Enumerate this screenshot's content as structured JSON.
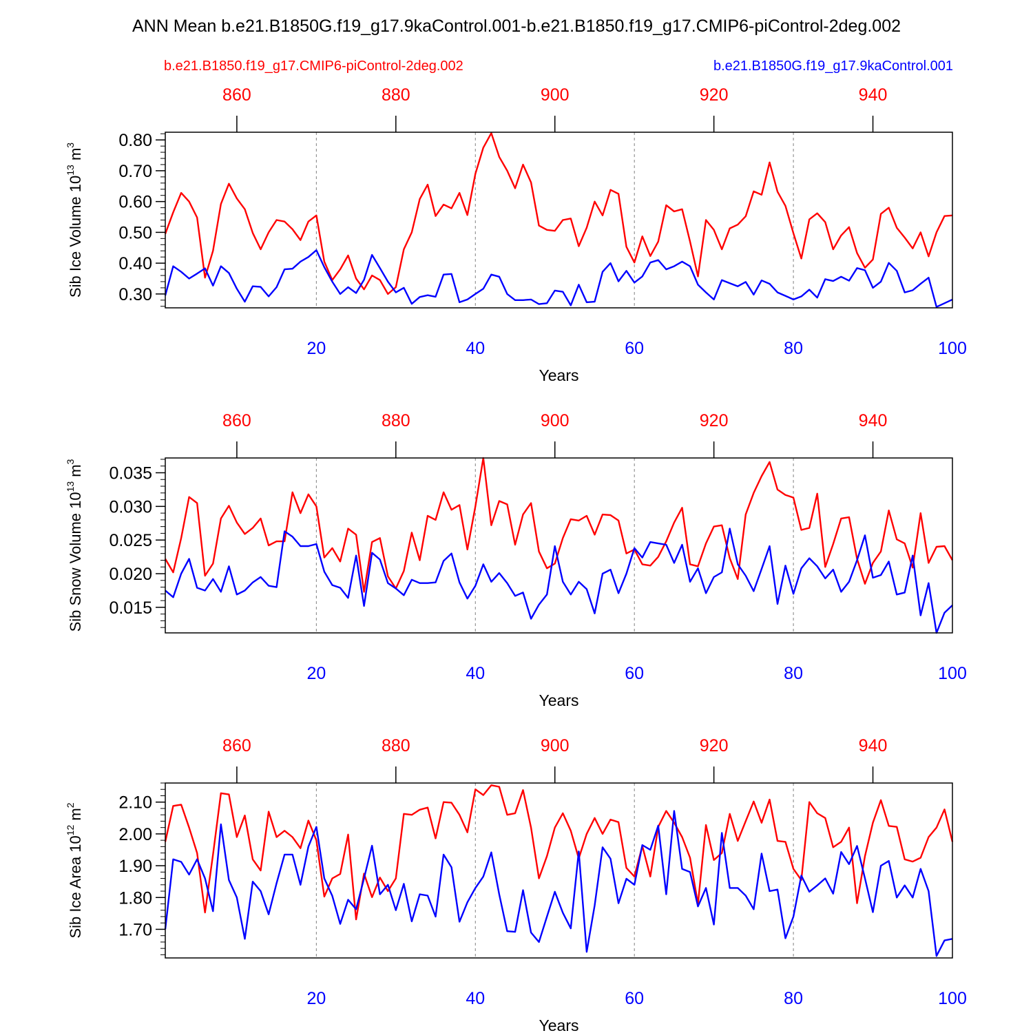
{
  "title": "ANN Mean b.e21.B1850G.f19_g17.9kaControl.001-b.e21.B1850.f19_g17.CMIP6-piControl-2deg.002",
  "legend": {
    "red_case": "b.e21.B1850.f19_g17.CMIP6-piControl-2deg.002",
    "blue_case": "b.e21.B1850G.f19_g17.9kaControl.001"
  },
  "colors": {
    "red": "#ff0000",
    "blue": "#0000ff",
    "axis": "#000000",
    "grid": "#808080"
  },
  "chart_data": [
    {
      "type": "line",
      "ylabel_main": "Sib Ice Volume 10",
      "ylabel_exp": "13",
      "ylabel_unit": " m",
      "ylabel_unit_exp": "3",
      "xlabel": "Years",
      "xlim": [
        1,
        100
      ],
      "ylim": [
        0.255,
        0.825
      ],
      "yticks": [
        0.3,
        0.4,
        0.5,
        0.6,
        0.7,
        0.8
      ],
      "ytick_labels": [
        "0.30",
        "0.40",
        "0.50",
        "0.60",
        "0.70",
        "0.80"
      ],
      "yminor": 0.02,
      "bottom_ticks": [
        20,
        40,
        60,
        80,
        100
      ],
      "bottom_tick_labels": [
        "20",
        "40",
        "60",
        "80",
        "100"
      ],
      "top_ticks": [
        860,
        880,
        900,
        920,
        940
      ],
      "top_tick_labels": [
        "860",
        "880",
        "900",
        "920",
        "940"
      ],
      "top_offset": 850,
      "series": [
        {
          "name": "b.e21.B1850.f19_g17.CMIP6-piControl-2deg.002",
          "color": "#ff0000",
          "values": [
            0.495,
            0.565,
            0.628,
            0.6,
            0.548,
            0.353,
            0.44,
            0.592,
            0.658,
            0.61,
            0.575,
            0.498,
            0.445,
            0.5,
            0.54,
            0.535,
            0.51,
            0.475,
            0.535,
            0.555,
            0.405,
            0.345,
            0.38,
            0.425,
            0.35,
            0.315,
            0.36,
            0.345,
            0.3,
            0.322,
            0.445,
            0.5,
            0.608,
            0.655,
            0.553,
            0.59,
            0.578,
            0.628,
            0.556,
            0.69,
            0.775,
            0.822,
            0.745,
            0.7,
            0.643,
            0.72,
            0.662,
            0.522,
            0.508,
            0.505,
            0.54,
            0.545,
            0.455,
            0.515,
            0.6,
            0.555,
            0.638,
            0.625,
            0.453,
            0.402,
            0.487,
            0.423,
            0.47,
            0.588,
            0.568,
            0.575,
            0.47,
            0.357,
            0.54,
            0.508,
            0.445,
            0.513,
            0.525,
            0.552,
            0.633,
            0.622,
            0.727,
            0.632,
            0.586,
            0.497,
            0.415,
            0.542,
            0.562,
            0.533,
            0.445,
            0.49,
            0.517,
            0.433,
            0.385,
            0.412,
            0.56,
            0.58,
            0.515,
            0.483,
            0.448,
            0.5,
            0.422,
            0.5,
            0.553,
            0.555
          ]
        },
        {
          "name": "b.e21.B1850G.f19_g17.9kaControl.001",
          "color": "#0000ff",
          "values": [
            0.295,
            0.39,
            0.372,
            0.35,
            0.366,
            0.383,
            0.327,
            0.39,
            0.368,
            0.317,
            0.275,
            0.325,
            0.323,
            0.292,
            0.322,
            0.38,
            0.382,
            0.405,
            0.42,
            0.442,
            0.387,
            0.34,
            0.3,
            0.322,
            0.303,
            0.346,
            0.427,
            0.384,
            0.34,
            0.305,
            0.32,
            0.268,
            0.29,
            0.296,
            0.291,
            0.363,
            0.365,
            0.273,
            0.282,
            0.3,
            0.317,
            0.363,
            0.356,
            0.3,
            0.28,
            0.28,
            0.282,
            0.267,
            0.27,
            0.311,
            0.307,
            0.263,
            0.33,
            0.273,
            0.275,
            0.372,
            0.4,
            0.341,
            0.375,
            0.337,
            0.357,
            0.402,
            0.41,
            0.38,
            0.39,
            0.405,
            0.39,
            0.33,
            0.305,
            0.282,
            0.345,
            0.335,
            0.325,
            0.339,
            0.298,
            0.344,
            0.333,
            0.305,
            0.294,
            0.282,
            0.292,
            0.314,
            0.288,
            0.348,
            0.342,
            0.356,
            0.343,
            0.384,
            0.377,
            0.32,
            0.34,
            0.401,
            0.375,
            0.305,
            0.312,
            0.333,
            0.353,
            0.258,
            0.27,
            0.282
          ]
        }
      ]
    },
    {
      "type": "line",
      "ylabel_main": "Sib Snow Volume 10",
      "ylabel_exp": "13",
      "ylabel_unit": " m",
      "ylabel_unit_exp": "3",
      "xlabel": "Years",
      "xlim": [
        1,
        100
      ],
      "ylim": [
        0.0112,
        0.0372
      ],
      "yticks": [
        0.015,
        0.02,
        0.025,
        0.03,
        0.035
      ],
      "ytick_labels": [
        "0.015",
        "0.020",
        "0.025",
        "0.030",
        "0.035"
      ],
      "yminor": 0.001,
      "bottom_ticks": [
        20,
        40,
        60,
        80,
        100
      ],
      "bottom_tick_labels": [
        "20",
        "40",
        "60",
        "80",
        "100"
      ],
      "top_ticks": [
        860,
        880,
        900,
        920,
        940
      ],
      "top_tick_labels": [
        "860",
        "880",
        "900",
        "920",
        "940"
      ],
      "top_offset": 850,
      "series": [
        {
          "name": "b.e21.B1850.f19_g17.CMIP6-piControl-2deg.002",
          "color": "#ff0000",
          "values": [
            0.0222,
            0.0202,
            0.0253,
            0.0314,
            0.0305,
            0.0197,
            0.0215,
            0.0282,
            0.0301,
            0.0276,
            0.0259,
            0.0268,
            0.0282,
            0.0242,
            0.0248,
            0.0248,
            0.0321,
            0.029,
            0.0318,
            0.03,
            0.0224,
            0.0238,
            0.0218,
            0.0267,
            0.0258,
            0.0173,
            0.0247,
            0.0253,
            0.0196,
            0.0178,
            0.0204,
            0.0261,
            0.022,
            0.0286,
            0.028,
            0.0321,
            0.0295,
            0.0302,
            0.0236,
            0.03,
            0.0372,
            0.0272,
            0.0308,
            0.0303,
            0.0243,
            0.0288,
            0.0305,
            0.0233,
            0.0208,
            0.0215,
            0.0253,
            0.0281,
            0.0279,
            0.0286,
            0.0258,
            0.0288,
            0.0287,
            0.0279,
            0.023,
            0.0236,
            0.0214,
            0.0212,
            0.0225,
            0.0248,
            0.0276,
            0.0298,
            0.0214,
            0.0211,
            0.0245,
            0.027,
            0.0272,
            0.0223,
            0.0192,
            0.0288,
            0.032,
            0.0345,
            0.0366,
            0.0325,
            0.0317,
            0.0313,
            0.0265,
            0.0268,
            0.0319,
            0.021,
            0.0244,
            0.0282,
            0.0284,
            0.0222,
            0.0185,
            0.0216,
            0.0233,
            0.0294,
            0.0251,
            0.0245,
            0.0209,
            0.029,
            0.0216,
            0.024,
            0.0241,
            0.022
          ]
        },
        {
          "name": "b.e21.B1850G.f19_g17.9kaControl.001",
          "color": "#0000ff",
          "values": [
            0.0175,
            0.0165,
            0.02,
            0.0222,
            0.0179,
            0.0175,
            0.0192,
            0.0173,
            0.0211,
            0.0169,
            0.0175,
            0.0187,
            0.0195,
            0.0182,
            0.018,
            0.0263,
            0.0255,
            0.0241,
            0.0241,
            0.0244,
            0.0203,
            0.0183,
            0.0179,
            0.0164,
            0.0227,
            0.0152,
            0.0231,
            0.0221,
            0.0186,
            0.0178,
            0.0168,
            0.0191,
            0.0186,
            0.0186,
            0.0187,
            0.0219,
            0.023,
            0.0187,
            0.0163,
            0.0182,
            0.0214,
            0.0188,
            0.0201,
            0.0186,
            0.0167,
            0.0172,
            0.0133,
            0.0154,
            0.0169,
            0.0241,
            0.0188,
            0.0169,
            0.0188,
            0.0177,
            0.0141,
            0.02,
            0.0206,
            0.0171,
            0.02,
            0.0238,
            0.0224,
            0.0247,
            0.0245,
            0.0243,
            0.0216,
            0.0243,
            0.0188,
            0.0208,
            0.0171,
            0.0195,
            0.0202,
            0.0267,
            0.0214,
            0.0197,
            0.0174,
            0.0207,
            0.0241,
            0.0155,
            0.0212,
            0.017,
            0.0208,
            0.0223,
            0.0211,
            0.0193,
            0.0206,
            0.0173,
            0.0188,
            0.022,
            0.0257,
            0.0194,
            0.0198,
            0.0218,
            0.0169,
            0.0172,
            0.0227,
            0.0138,
            0.0186,
            0.0112,
            0.0142,
            0.0153
          ]
        }
      ]
    },
    {
      "type": "line",
      "ylabel_main": "Sib Ice Area 10",
      "ylabel_exp": "12",
      "ylabel_unit": " m",
      "ylabel_unit_exp": "2",
      "xlabel": "Years",
      "xlim": [
        1,
        100
      ],
      "ylim": [
        1.61,
        2.16
      ],
      "yticks": [
        1.7,
        1.8,
        1.9,
        2.0,
        2.1
      ],
      "ytick_labels": [
        "1.70",
        "1.80",
        "1.90",
        "2.00",
        "2.10"
      ],
      "yminor": 0.02,
      "bottom_ticks": [
        20,
        40,
        60,
        80,
        100
      ],
      "bottom_tick_labels": [
        "20",
        "40",
        "60",
        "80",
        "100"
      ],
      "top_ticks": [
        860,
        880,
        900,
        920,
        940
      ],
      "top_tick_labels": [
        "860",
        "880",
        "900",
        "920",
        "940"
      ],
      "top_offset": 850,
      "series": [
        {
          "name": "b.e21.B1850.f19_g17.CMIP6-piControl-2deg.002",
          "color": "#ff0000",
          "values": [
            1.975,
            2.088,
            2.092,
            2.02,
            1.94,
            1.753,
            1.935,
            2.128,
            2.124,
            1.99,
            2.058,
            1.92,
            1.885,
            2.07,
            1.99,
            2.01,
            1.99,
            1.955,
            2.042,
            1.98,
            1.803,
            1.86,
            1.874,
            1.998,
            1.731,
            1.875,
            1.801,
            1.863,
            1.82,
            1.86,
            2.063,
            2.06,
            2.076,
            2.083,
            1.986,
            2.1,
            2.098,
            2.06,
            2.005,
            2.14,
            2.122,
            2.153,
            2.148,
            2.06,
            2.065,
            2.138,
            2.02,
            1.86,
            1.93,
            2.02,
            2.065,
            2.01,
            1.923,
            2.0,
            2.05,
            2.0,
            2.045,
            2.037,
            1.893,
            1.866,
            1.962,
            1.866,
            2.022,
            2.072,
            2.035,
            1.99,
            1.925,
            1.78,
            2.028,
            1.918,
            1.94,
            2.063,
            1.978,
            2.04,
            2.102,
            2.035,
            2.108,
            1.978,
            1.975,
            1.89,
            1.855,
            2.1,
            2.065,
            2.05,
            1.958,
            1.975,
            2.02,
            1.782,
            1.93,
            2.035,
            2.106,
            2.025,
            2.022,
            1.92,
            1.913,
            1.925,
            1.99,
            2.02,
            2.077,
            1.975
          ]
        },
        {
          "name": "b.e21.B1850G.f19_g17.9kaControl.001",
          "color": "#0000ff",
          "values": [
            1.7,
            1.92,
            1.912,
            1.872,
            1.92,
            1.86,
            1.757,
            2.03,
            1.855,
            1.8,
            1.67,
            1.85,
            1.82,
            1.747,
            1.845,
            1.935,
            1.935,
            1.84,
            1.96,
            2.022,
            1.86,
            1.805,
            1.717,
            1.793,
            1.763,
            1.86,
            1.963,
            1.81,
            1.84,
            1.76,
            1.843,
            1.725,
            1.81,
            1.806,
            1.74,
            1.935,
            1.895,
            1.724,
            1.785,
            1.83,
            1.866,
            1.942,
            1.81,
            1.694,
            1.692,
            1.823,
            1.69,
            1.66,
            1.74,
            1.818,
            1.752,
            1.703,
            1.945,
            1.629,
            1.775,
            1.958,
            1.922,
            1.782,
            1.859,
            1.84,
            1.965,
            1.95,
            2.026,
            1.81,
            2.072,
            1.89,
            1.88,
            1.772,
            1.83,
            1.715,
            2.003,
            1.83,
            1.83,
            1.806,
            1.763,
            1.938,
            1.82,
            1.825,
            1.672,
            1.74,
            1.869,
            1.818,
            1.838,
            1.86,
            1.812,
            1.943,
            1.905,
            1.962,
            1.86,
            1.754,
            1.9,
            1.915,
            1.8,
            1.838,
            1.8,
            1.89,
            1.82,
            1.616,
            1.665,
            1.67
          ]
        }
      ]
    }
  ]
}
